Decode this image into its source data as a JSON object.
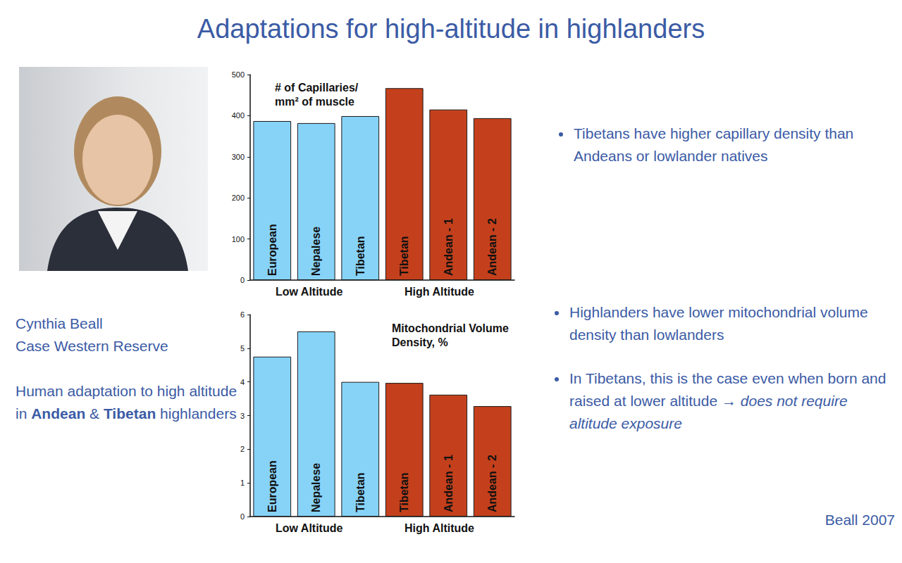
{
  "title": "Adaptations for high-altitude in highlanders",
  "caption": {
    "name": "Cynthia Beall",
    "affiliation": "Case Western Reserve",
    "text": "Human adaptation to high altitude in Andean & Tibetan highlanders",
    "bold": [
      "Andean",
      "Tibetan"
    ]
  },
  "bullets": [
    {
      "text": "Tibetans have higher capillary density than Andeans or lowlander natives"
    },
    {
      "text": "Highlanders have lower mitochondrial volume density than lowlanders"
    },
    {
      "text": "In Tibetans,  this is the case even when born and raised at lower altitude →",
      "italic": "does not require altitude exposure"
    }
  ],
  "source": "Beall 2007",
  "chart_data": [
    {
      "type": "bar",
      "title": "# of Capillaries/\nmm² of muscle",
      "categories": [
        "European",
        "Nepalese",
        "Tibetan",
        "Tibetan",
        "Andean - 1",
        "Andean - 2"
      ],
      "values": [
        387,
        382,
        399,
        467,
        415,
        394
      ],
      "colors": [
        "#87d3f8",
        "#87d3f8",
        "#87d3f8",
        "#c4401c",
        "#c4401c",
        "#c4401c"
      ],
      "groups": [
        {
          "label": "Low Altitude",
          "count": 3
        },
        {
          "label": "High Altitude",
          "count": 3
        }
      ],
      "ylim": [
        0,
        500
      ],
      "yticks": [
        0,
        100,
        200,
        300,
        400,
        500
      ],
      "grid": false,
      "tick_labels": "y"
    },
    {
      "type": "bar",
      "title": "Mitochondrial Volume\nDensity, %",
      "categories": [
        "European",
        "Nepalese",
        "Tibetan",
        "Tibetan",
        "Andean - 1",
        "Andean - 2"
      ],
      "values": [
        4.75,
        5.5,
        4.0,
        3.97,
        3.62,
        3.28
      ],
      "colors": [
        "#87d3f8",
        "#87d3f8",
        "#87d3f8",
        "#c4401c",
        "#c4401c",
        "#c4401c"
      ],
      "groups": [
        {
          "label": "Low Altitude",
          "count": 3
        },
        {
          "label": "High Altitude",
          "count": 3
        }
      ],
      "ylim": [
        0,
        6
      ],
      "yticks": [
        0,
        1,
        2,
        3,
        4,
        5,
        6
      ],
      "grid": false,
      "tick_labels": "y"
    }
  ]
}
